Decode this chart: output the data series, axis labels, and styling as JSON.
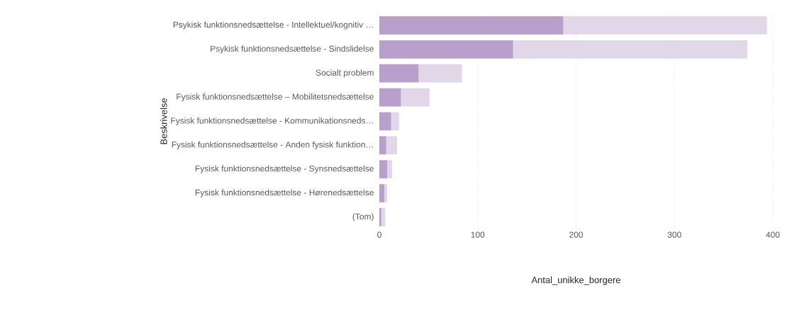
{
  "chart_data": {
    "type": "bar",
    "orientation": "horizontal",
    "stacked": true,
    "xlabel": "Antal_unikke_borgere",
    "ylabel": "Beskrivelse",
    "categories": [
      "Psykisk funktionsnedsættelse - Intellektuel/kognitiv …",
      "Psykisk funktionsnedsættelse - Sindslidelse",
      "Socialt problem",
      "Fysisk funktionsnedsættelse – Mobilitetsnedsættelse",
      "Fysisk funktionsnedsættelse - Kommunikationsneds…",
      "Fysisk funktionsnedsættelse - Anden fysisk funktion…",
      "Fysisk funktionsnedsættelse - Synsnedsættelse",
      "Fysisk funktionsnedsættelse - Hørenedsættelse",
      "(Tom)"
    ],
    "series": [
      {
        "color": "#b99fcb",
        "values": [
          187,
          136,
          40,
          22,
          12,
          7,
          8,
          5,
          2
        ]
      },
      {
        "color": "#e2d6e9",
        "values": [
          207,
          238,
          44,
          29,
          8,
          11,
          5,
          3,
          4
        ]
      }
    ],
    "xlim": [
      0,
      400
    ],
    "xticks": [
      0,
      100,
      200,
      300,
      400
    ],
    "grid": "x"
  }
}
